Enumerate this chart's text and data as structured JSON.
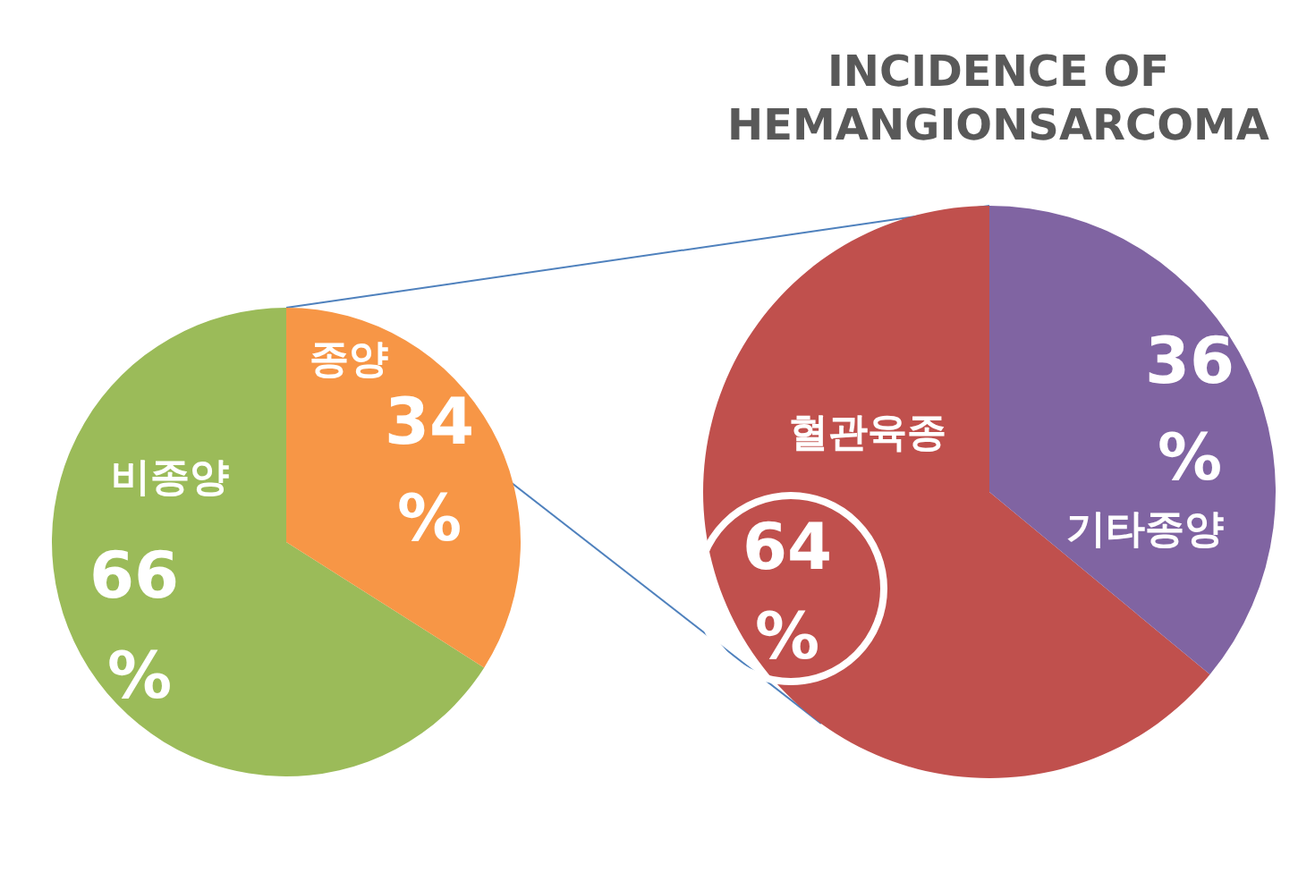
{
  "chart_data": [
    {
      "type": "pie",
      "categories": [
        "비종양",
        "종양"
      ],
      "values": [
        66,
        34
      ],
      "colors": [
        "#9bbb59",
        "#f79646"
      ],
      "value_labels": [
        "66%",
        "34%"
      ]
    },
    {
      "type": "pie",
      "title": "INCIDENCE OF HEMANGIONSARCOMA",
      "categories": [
        "혈관육종",
        "기타종양"
      ],
      "values": [
        64,
        36
      ],
      "colors": [
        "#c0504d",
        "#8064a2"
      ],
      "value_labels": [
        "64%",
        "36%"
      ]
    }
  ]
}
